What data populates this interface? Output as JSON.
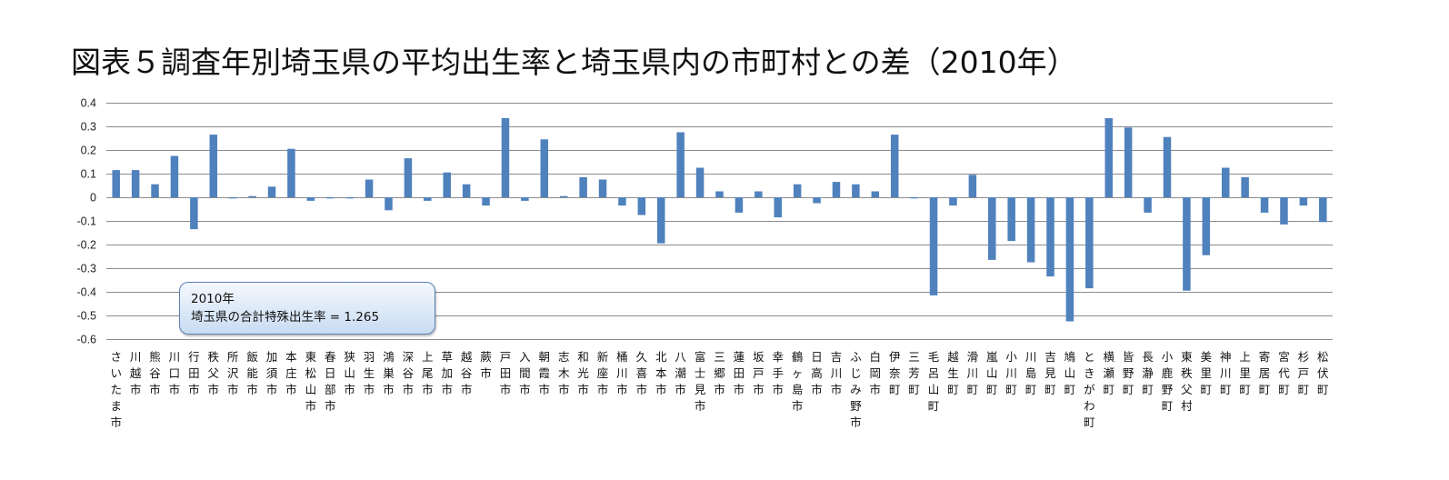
{
  "title": "図表５調査年別埼玉県の平均出生率と埼玉県内の市町村との差（2010年）",
  "annotation": {
    "line1": "2010年",
    "line2": "埼玉県の合計特殊出生率 = 1.265"
  },
  "colors": {
    "bar": "#4f81bd",
    "grid": "#8c8c8c"
  },
  "chart_data": {
    "type": "bar",
    "title": "図表５調査年別埼玉県の平均出生率と埼玉県内の市町村との差（2010年）",
    "xlabel": "",
    "ylabel": "",
    "ylim": [
      -0.6,
      0.4
    ],
    "yticks": [
      0.4,
      0.3,
      0.2,
      0.1,
      0,
      -0.1,
      -0.2,
      -0.3,
      -0.4,
      -0.5,
      -0.6
    ],
    "grid": true,
    "categories": [
      "さいたま市",
      "川越市",
      "熊谷市",
      "川口市",
      "行田市",
      "秩父市",
      "所沢市",
      "飯能市",
      "加須市",
      "本庄市",
      "東松山市",
      "春日部市",
      "狭山市",
      "羽生市",
      "鴻巣市",
      "深谷市",
      "上尾市",
      "草加市",
      "越谷市",
      "蕨市",
      "戸田市",
      "入間市",
      "朝霞市",
      "志木市",
      "和光市",
      "新座市",
      "桶川市",
      "久喜市",
      "北本市",
      "八潮市",
      "富士見市",
      "三郷市",
      "蓮田市",
      "坂戸市",
      "幸手市",
      "鶴ヶ島市",
      "日高市",
      "吉川市",
      "ふじみ野市",
      "白岡市",
      "伊奈町",
      "三芳町",
      "毛呂山町",
      "越生町",
      "滑川町",
      "嵐山町",
      "小川町",
      "川島町",
      "吉見町",
      "鳩山町",
      "ときがわ町",
      "横瀬町",
      "皆野町",
      "長瀞町",
      "小鹿野町",
      "東秩父村",
      "美里町",
      "神川町",
      "上里町",
      "寄居町",
      "宮代町",
      "杉戸町",
      "松伏町"
    ],
    "values": [
      0.115,
      0.115,
      0.055,
      0.175,
      -0.135,
      0.265,
      -0.005,
      0.005,
      0.045,
      0.205,
      -0.015,
      -0.005,
      -0.005,
      0.075,
      -0.055,
      0.165,
      -0.015,
      0.105,
      0.055,
      -0.035,
      0.335,
      -0.015,
      0.245,
      0.005,
      0.085,
      0.075,
      -0.035,
      -0.075,
      -0.195,
      0.275,
      0.125,
      0.025,
      -0.065,
      0.025,
      -0.085,
      0.055,
      -0.025,
      0.065,
      0.055,
      0.025,
      0.265,
      -0.005,
      -0.415,
      -0.035,
      0.095,
      -0.265,
      -0.185,
      -0.275,
      -0.335,
      -0.525,
      -0.385,
      0.335,
      0.295,
      -0.065,
      0.255,
      -0.395,
      -0.245,
      0.125,
      0.085,
      -0.065,
      -0.115,
      -0.035,
      -0.105
    ]
  }
}
